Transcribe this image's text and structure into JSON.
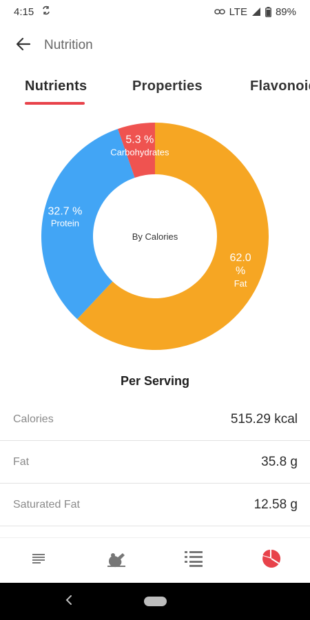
{
  "status_bar": {
    "time": "4:15",
    "network": "LTE",
    "battery": "89%",
    "icons": [
      "sync-icon",
      "link-icon",
      "signal-icon",
      "battery-icon"
    ]
  },
  "app_bar": {
    "title": "Nutrition",
    "back_icon": "arrow-left-icon"
  },
  "tabs": [
    {
      "label": "Nutrients",
      "active": true
    },
    {
      "label": "Properties",
      "active": false
    },
    {
      "label": "Flavonoids",
      "active": false
    }
  ],
  "chart_data": {
    "type": "pie",
    "center_label": "By Calories",
    "slices": [
      {
        "name": "Fat",
        "value": 62.0,
        "label": "62.0 %",
        "color": "#f6a623"
      },
      {
        "name": "Protein",
        "value": 32.7,
        "label": "32.7 %",
        "color": "#42a5f5"
      },
      {
        "name": "Carbohydrates",
        "value": 5.3,
        "label": "5.3 %",
        "color": "#ef5350"
      }
    ]
  },
  "per_serving": {
    "title": "Per Serving",
    "rows": [
      {
        "label": "Calories",
        "value": "515.29 kcal"
      },
      {
        "label": "Fat",
        "value": "35.8 g"
      },
      {
        "label": "Saturated Fat",
        "value": "12.58 g"
      }
    ]
  },
  "bottom_nav": [
    {
      "icon": "description-icon",
      "active": false
    },
    {
      "icon": "ingredients-icon",
      "active": false
    },
    {
      "icon": "steps-list-icon",
      "active": false
    },
    {
      "icon": "nutrition-pie-icon",
      "active": true
    }
  ],
  "colors": {
    "accent": "#e8424a",
    "fat": "#f6a623",
    "protein": "#42a5f5",
    "carbohydrates": "#ef5350"
  }
}
